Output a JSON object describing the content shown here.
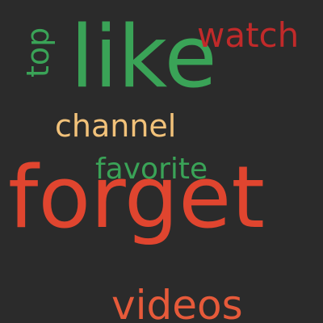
{
  "cloud": {
    "background": "#2b2b2b",
    "words": [
      {
        "text": "like",
        "color": "#3aa357"
      },
      {
        "text": "watch",
        "color": "#c12a2a"
      },
      {
        "text": "top",
        "color": "#3aa357"
      },
      {
        "text": "channel",
        "color": "#f2c27a"
      },
      {
        "text": "favorite",
        "color": "#3aa357"
      },
      {
        "text": "forget",
        "color": "#e0452f"
      },
      {
        "text": "videos",
        "color": "#e65a3a"
      }
    ]
  }
}
